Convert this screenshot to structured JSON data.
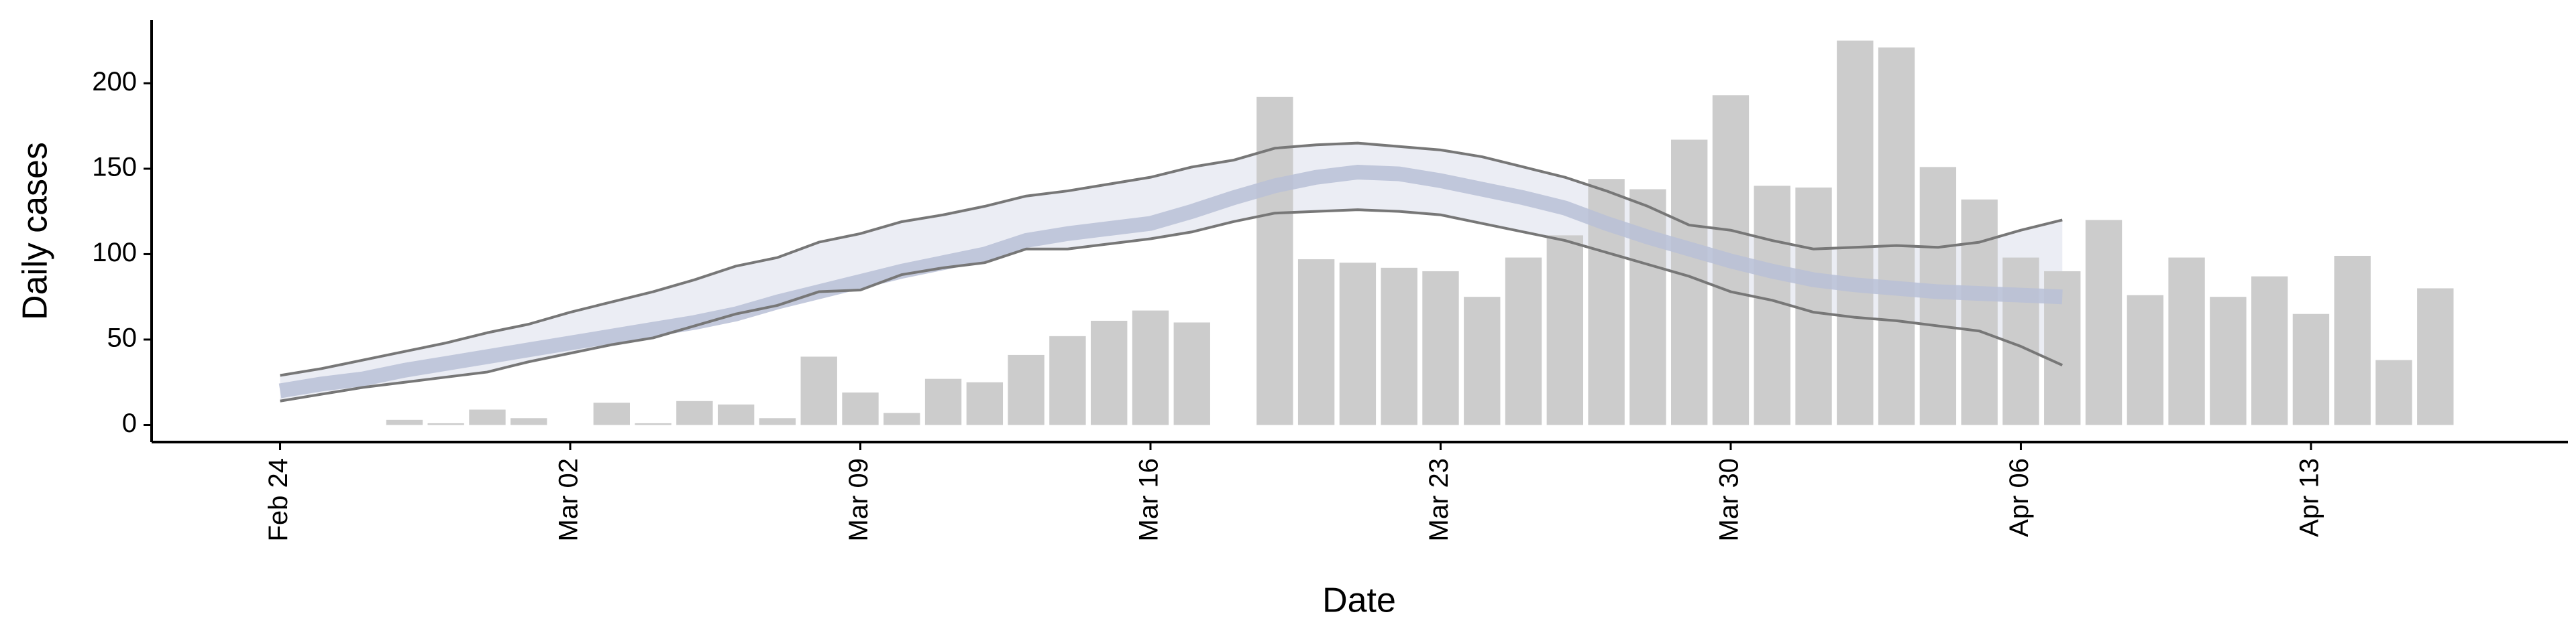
{
  "chart_data": {
    "type": "bar",
    "x_label": "Date",
    "y_label": "Daily cases",
    "categories": [
      "Feb 24",
      null,
      null,
      null,
      null,
      null,
      null,
      "Mar 02",
      null,
      null,
      null,
      null,
      null,
      null,
      "Mar 09",
      null,
      null,
      null,
      null,
      null,
      null,
      "Mar 16",
      null,
      null,
      null,
      null,
      null,
      null,
      "Mar 23",
      null,
      null,
      null,
      null,
      null,
      null,
      "Mar 30",
      null,
      null,
      null,
      null,
      null,
      null,
      "Apr 06",
      null,
      null,
      null,
      null,
      null,
      null,
      "Apr 13",
      null,
      null,
      null
    ],
    "series": [
      {
        "type": "bar",
        "color": "#cccccc",
        "values": [
          null,
          null,
          null,
          3,
          1,
          9,
          4,
          null,
          13,
          1,
          14,
          12,
          4,
          40,
          19,
          7,
          27,
          25,
          41,
          52,
          61,
          67,
          60,
          null,
          192,
          97,
          95,
          92,
          90,
          75,
          98,
          111,
          144,
          138,
          167,
          193,
          140,
          139,
          225,
          221,
          151,
          132,
          98,
          90,
          120,
          76,
          98,
          75,
          87,
          65,
          99,
          38,
          80
        ]
      },
      {
        "type": "line",
        "color": "#b8bfd6",
        "values": [
          20,
          24,
          27,
          32,
          36,
          40,
          44,
          48,
          52,
          56,
          60,
          65,
          72,
          78,
          84,
          90,
          95,
          100,
          108,
          112,
          115,
          118,
          125,
          133,
          140,
          145,
          148,
          147,
          143,
          138,
          133,
          127,
          118,
          110,
          103,
          96,
          90,
          85,
          82,
          80,
          78,
          77,
          76,
          75,
          null,
          null,
          null,
          null,
          null,
          null,
          null,
          null,
          null
        ]
      },
      {
        "type": "line",
        "color": "#777777",
        "values": [
          29,
          33,
          38,
          43,
          48,
          54,
          59,
          66,
          72,
          78,
          85,
          93,
          98,
          107,
          112,
          119,
          123,
          128,
          134,
          137,
          141,
          145,
          151,
          155,
          162,
          164,
          165,
          163,
          161,
          157,
          151,
          145,
          137,
          128,
          117,
          114,
          108,
          103,
          104,
          105,
          104,
          107,
          114,
          120,
          null,
          null,
          null,
          null,
          null,
          null,
          null,
          null,
          null
        ]
      },
      {
        "type": "line",
        "color": "#777777",
        "values": [
          14,
          18,
          22,
          25,
          28,
          31,
          37,
          42,
          47,
          51,
          58,
          65,
          70,
          78,
          79,
          88,
          92,
          95,
          103,
          103,
          106,
          109,
          113,
          119,
          124,
          125,
          126,
          125,
          123,
          118,
          113,
          108,
          101,
          94,
          87,
          78,
          73,
          66,
          63,
          61,
          58,
          55,
          46,
          35,
          null,
          null,
          null,
          null,
          null,
          null,
          null,
          null,
          null
        ]
      }
    ],
    "band_color": "#e6e8f1",
    "ylim": [
      -10,
      237
    ],
    "yticks": [
      0,
      50,
      100,
      150,
      200
    ]
  }
}
